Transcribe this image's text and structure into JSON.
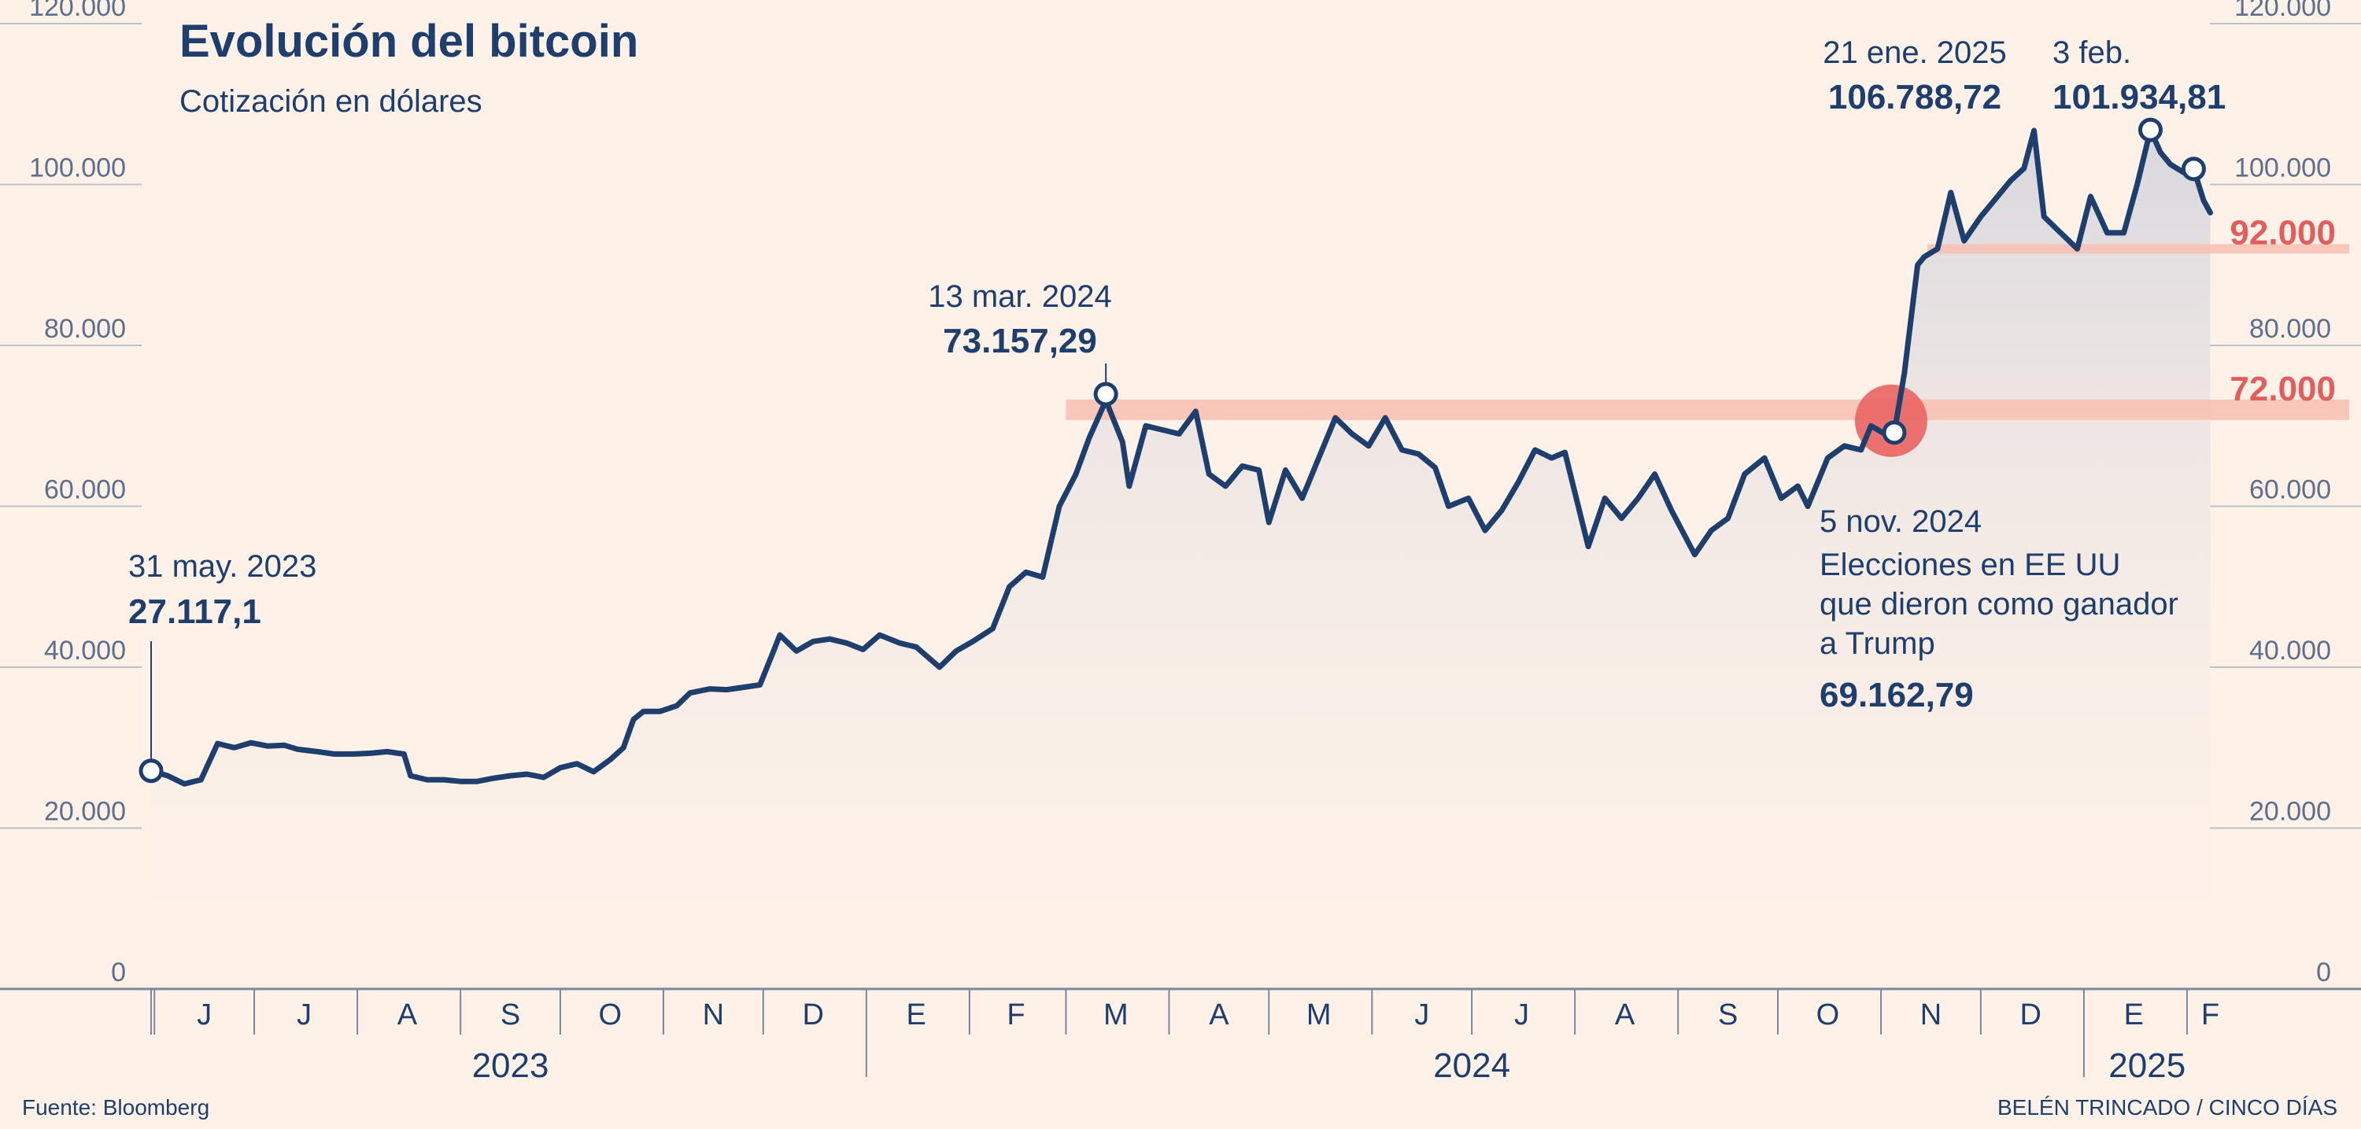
{
  "chart_data": {
    "type": "line",
    "title": "Evolución del bitcoin",
    "subtitle": "Cotización en dólares",
    "ylim": [
      0,
      120000
    ],
    "yticks": [
      "0",
      "20.000",
      "40.000",
      "60.000",
      "80.000",
      "100.000",
      "120.000"
    ],
    "ytick_values": [
      0,
      20000,
      40000,
      60000,
      80000,
      100000,
      120000
    ],
    "xlim": [
      "2023-05-31",
      "2025-02-10"
    ],
    "month_labels": [
      {
        "label": "J",
        "date": "2023-06-16"
      },
      {
        "label": "J",
        "date": "2023-07-16"
      },
      {
        "label": "A",
        "date": "2023-08-16"
      },
      {
        "label": "S",
        "date": "2023-09-16"
      },
      {
        "label": "O",
        "date": "2023-10-16"
      },
      {
        "label": "N",
        "date": "2023-11-16"
      },
      {
        "label": "D",
        "date": "2023-12-16"
      },
      {
        "label": "E",
        "date": "2024-01-16"
      },
      {
        "label": "F",
        "date": "2024-02-15"
      },
      {
        "label": "M",
        "date": "2024-03-16"
      },
      {
        "label": "A",
        "date": "2024-04-16"
      },
      {
        "label": "M",
        "date": "2024-05-16"
      },
      {
        "label": "J",
        "date": "2024-06-16"
      },
      {
        "label": "J",
        "date": "2024-07-16"
      },
      {
        "label": "A",
        "date": "2024-08-16"
      },
      {
        "label": "S",
        "date": "2024-09-16"
      },
      {
        "label": "O",
        "date": "2024-10-16"
      },
      {
        "label": "N",
        "date": "2024-11-16"
      },
      {
        "label": "D",
        "date": "2024-12-16"
      },
      {
        "label": "E",
        "date": "2025-01-16"
      },
      {
        "label": "F",
        "date": "2025-02-08"
      }
    ],
    "year_labels": [
      {
        "label": "2023",
        "date": "2023-09-16"
      },
      {
        "label": "2024",
        "date": "2024-07-01"
      },
      {
        "label": "2025",
        "date": "2025-01-20"
      }
    ],
    "reference_lines": [
      {
        "value": 72000,
        "label": "72.000",
        "from": "2024-03-01"
      },
      {
        "value": 92000,
        "label": "92.000",
        "from": "2024-11-15"
      }
    ],
    "series": [
      {
        "color": "#1e3f6e",
        "x": [
          "2023-05-31",
          "2023-06-05",
          "2023-06-10",
          "2023-06-15",
          "2023-06-20",
          "2023-06-25",
          "2023-06-30",
          "2023-07-05",
          "2023-07-10",
          "2023-07-14",
          "2023-07-20",
          "2023-07-25",
          "2023-07-31",
          "2023-08-05",
          "2023-08-10",
          "2023-08-15",
          "2023-08-17",
          "2023-08-22",
          "2023-08-27",
          "2023-09-01",
          "2023-09-06",
          "2023-09-11",
          "2023-09-16",
          "2023-09-21",
          "2023-09-26",
          "2023-10-01",
          "2023-10-06",
          "2023-10-11",
          "2023-10-16",
          "2023-10-20",
          "2023-10-23",
          "2023-10-26",
          "2023-10-31",
          "2023-11-05",
          "2023-11-09",
          "2023-11-15",
          "2023-11-20",
          "2023-11-25",
          "2023-11-30",
          "2023-12-04",
          "2023-12-06",
          "2023-12-11",
          "2023-12-16",
          "2023-12-21",
          "2023-12-26",
          "2023-12-31",
          "2024-01-05",
          "2024-01-11",
          "2024-01-16",
          "2024-01-23",
          "2024-01-28",
          "2024-02-02",
          "2024-02-08",
          "2024-02-13",
          "2024-02-18",
          "2024-02-23",
          "2024-02-28",
          "2024-03-04",
          "2024-03-08",
          "2024-03-13",
          "2024-03-18",
          "2024-03-20",
          "2024-03-25",
          "2024-03-30",
          "2024-04-04",
          "2024-04-09",
          "2024-04-13",
          "2024-04-18",
          "2024-04-23",
          "2024-04-28",
          "2024-05-01",
          "2024-05-06",
          "2024-05-11",
          "2024-05-16",
          "2024-05-21",
          "2024-05-26",
          "2024-05-31",
          "2024-06-05",
          "2024-06-10",
          "2024-06-15",
          "2024-06-20",
          "2024-06-24",
          "2024-06-30",
          "2024-07-05",
          "2024-07-10",
          "2024-07-15",
          "2024-07-20",
          "2024-07-25",
          "2024-07-29",
          "2024-08-05",
          "2024-08-10",
          "2024-08-15",
          "2024-08-20",
          "2024-08-25",
          "2024-08-30",
          "2024-09-06",
          "2024-09-11",
          "2024-09-16",
          "2024-09-21",
          "2024-09-27",
          "2024-10-02",
          "2024-10-07",
          "2024-10-10",
          "2024-10-16",
          "2024-10-21",
          "2024-10-26",
          "2024-10-29",
          "2024-11-03",
          "2024-11-05",
          "2024-11-08",
          "2024-11-12",
          "2024-11-14",
          "2024-11-18",
          "2024-11-22",
          "2024-11-26",
          "2024-12-01",
          "2024-12-05",
          "2024-12-10",
          "2024-12-14",
          "2024-12-17",
          "2024-12-20",
          "2024-12-25",
          "2024-12-30",
          "2025-01-03",
          "2025-01-08",
          "2025-01-13",
          "2025-01-17",
          "2025-01-21",
          "2025-01-24",
          "2025-01-27",
          "2025-01-31",
          "2025-02-03",
          "2025-02-06",
          "2025-02-08"
        ],
        "y": [
          27117,
          26500,
          25500,
          26000,
          30500,
          30000,
          30600,
          30200,
          30300,
          29800,
          29500,
          29200,
          29200,
          29300,
          29500,
          29200,
          26500,
          26000,
          26000,
          25800,
          25800,
          26200,
          26500,
          26700,
          26300,
          27500,
          28000,
          27000,
          28500,
          30000,
          33500,
          34500,
          34500,
          35200,
          36800,
          37300,
          37200,
          37500,
          37800,
          41900,
          44000,
          42000,
          43200,
          43500,
          43000,
          42200,
          44000,
          43000,
          42500,
          40000,
          42000,
          43200,
          44800,
          50000,
          51800,
          51200,
          60000,
          64000,
          68500,
          73157,
          68000,
          62500,
          70000,
          69500,
          69000,
          71800,
          64000,
          62500,
          65000,
          64500,
          58000,
          64500,
          61000,
          66000,
          71000,
          69000,
          67500,
          71000,
          67000,
          66500,
          64800,
          60000,
          61000,
          57000,
          59500,
          63000,
          67000,
          66000,
          66700,
          55000,
          61000,
          58500,
          61000,
          64000,
          59500,
          54000,
          57000,
          58500,
          64000,
          66000,
          61000,
          62500,
          60000,
          66000,
          67500,
          67000,
          70000,
          68800,
          69162,
          76500,
          90000,
          91000,
          92000,
          99000,
          93000,
          96000,
          98000,
          100500,
          102000,
          106700,
          96000,
          94000,
          92000,
          98500,
          94000,
          94000,
          100000,
          106788,
          104000,
          102500,
          101500,
          101934,
          98000,
          96500
        ]
      }
    ],
    "annotations": [
      {
        "date_label": "31 may. 2023",
        "value_label": "27.117,1",
        "x": "2023-05-31",
        "y": 27117
      },
      {
        "date_label": "13 mar. 2024",
        "value_label": "73.157,29",
        "x": "2024-03-13",
        "y": 73157
      },
      {
        "date_label": "5 nov. 2024",
        "note": [
          "Elecciones en EE UU",
          "que dieron como ganador",
          "a Trump"
        ],
        "value_label": "69.162,79",
        "x": "2024-11-05",
        "y": 69162
      },
      {
        "date_label": "21 ene. 2025",
        "value_label": "106.788,72",
        "x": "2025-01-21",
        "y": 106788
      },
      {
        "date_label": "3 feb.",
        "value_label": "101.934,81",
        "x": "2025-02-03",
        "y": 101934
      }
    ],
    "source": "Fuente: Bloomberg",
    "credit": "BELÉN TRINCADO / CINCO DÍAS"
  },
  "colors": {
    "background": "#fdf1e8",
    "line": "#1e3f6e",
    "reference_band": "#f7bfb0",
    "reference_label": "#e35d5d",
    "highlight_circle": "#ea6462",
    "fill_top": "#d9d8de"
  }
}
